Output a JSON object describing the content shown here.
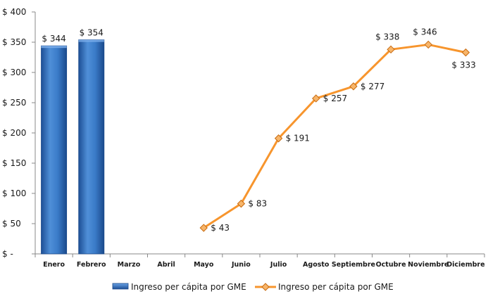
{
  "chart_data": {
    "type": "bar+line",
    "categories": [
      "Enero",
      "Febrero",
      "Marzo",
      "Abril",
      "Mayo",
      "Junio",
      "Julio",
      "Agosto",
      "Septiembre",
      "Octubre",
      "Noviembre",
      "Diciembre"
    ],
    "series": [
      {
        "name": "Ingreso per cápita por GME",
        "kind": "bar",
        "color": "#2f6fbf",
        "values": [
          344,
          354,
          null,
          null,
          null,
          null,
          null,
          null,
          null,
          null,
          null,
          null
        ],
        "labels": [
          "$ 344",
          "$ 354",
          null,
          null,
          null,
          null,
          null,
          null,
          null,
          null,
          null,
          null
        ]
      },
      {
        "name": "Ingreso per cápita por GME",
        "kind": "line",
        "color": "#f7952d",
        "values": [
          null,
          null,
          null,
          null,
          43,
          83,
          191,
          257,
          277,
          338,
          346,
          333
        ],
        "labels": [
          null,
          null,
          null,
          null,
          "$ 43",
          "$ 83",
          "$ 191",
          "$ 257",
          "$ 277",
          "$ 338",
          "$ 346",
          "$ 333"
        ]
      }
    ],
    "ylim": [
      0,
      400
    ],
    "yticks": [
      0,
      50,
      100,
      150,
      200,
      250,
      300,
      350,
      400
    ],
    "ytick_labels": [
      "$ -",
      "$ 50",
      "$ 100",
      "$ 150",
      "$ 200",
      "$ 250",
      "$ 300",
      "$ 350",
      "$ 400"
    ],
    "grid": false,
    "legend": "bottom",
    "title": "",
    "xlabel": "",
    "ylabel": ""
  }
}
